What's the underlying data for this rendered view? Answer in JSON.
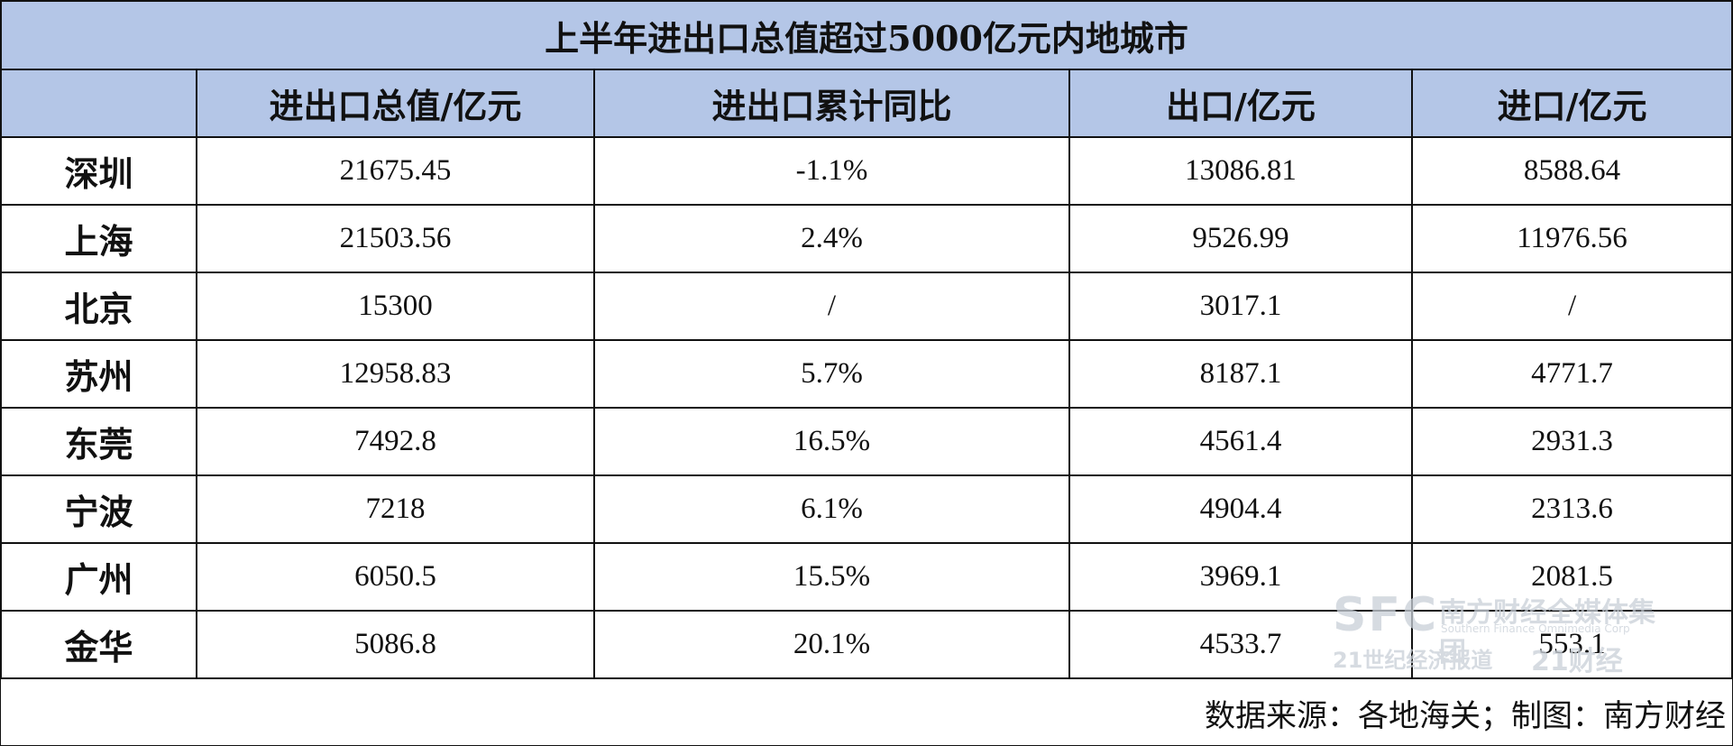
{
  "title": "上半年进出口总值超过5000亿元内地城市",
  "headers": [
    "",
    "进出口总值/亿元",
    "进出口累计同比",
    "出口/亿元",
    "进口/亿元"
  ],
  "rows": [
    [
      "深圳",
      "21675.45",
      "-1.1%",
      "13086.81",
      "8588.64"
    ],
    [
      "上海",
      "21503.56",
      "2.4%",
      "9526.99",
      "11976.56"
    ],
    [
      "北京",
      "15300",
      "/",
      "3017.1",
      "/"
    ],
    [
      "苏州",
      "12958.83",
      "5.7%",
      "8187.1",
      "4771.7"
    ],
    [
      "东莞",
      "7492.8",
      "16.5%",
      "4561.4",
      "2931.3"
    ],
    [
      "宁波",
      "7218",
      "6.1%",
      "4904.4",
      "2313.6"
    ],
    [
      "广州",
      "6050.5",
      "15.5%",
      "3969.1",
      "2081.5"
    ],
    [
      "金华",
      "5086.8",
      "20.1%",
      "4533.7",
      "553.1"
    ]
  ],
  "source": "数据来源：各地海关；制图：南方财经",
  "watermark": {
    "logo": "SFC",
    "group": "南方财经全媒体集团",
    "sub": "Southern Finance Omnimedia Corp",
    "line2a": "21世纪经济报道",
    "line2b": "21财经"
  },
  "colors": {
    "header_bg": "#b4c6e7",
    "border": "#111111"
  }
}
